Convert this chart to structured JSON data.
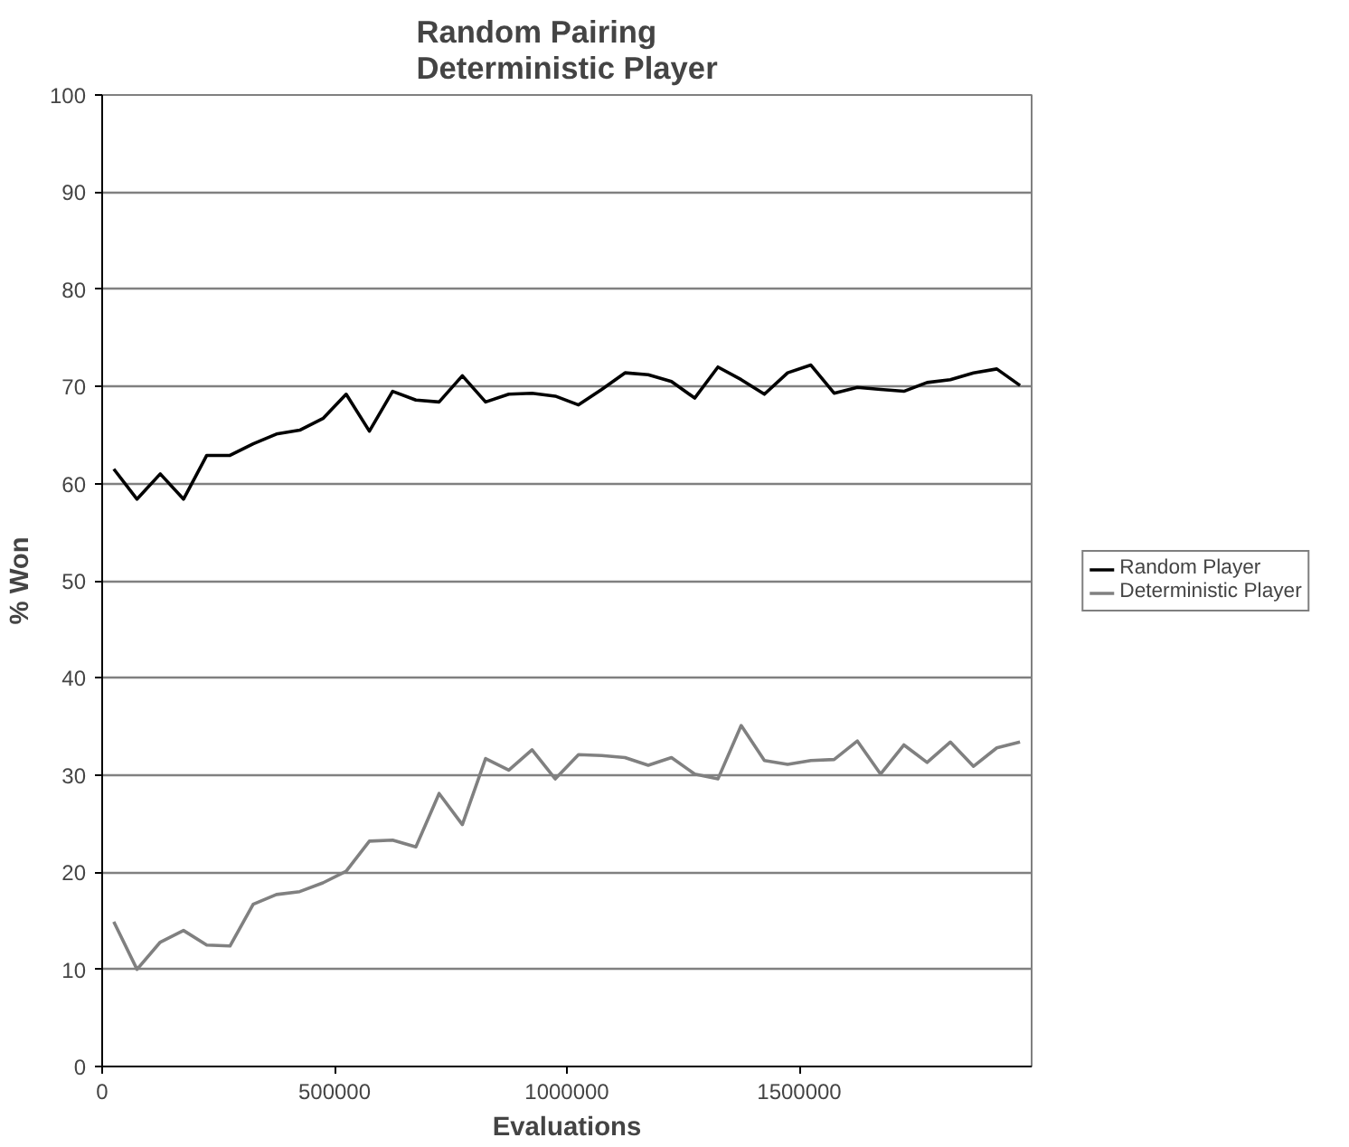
{
  "chart_data": {
    "type": "line",
    "title": "Random Pairing\nDeterministic Player",
    "xlabel": "Evaluations",
    "ylabel": "% Won",
    "x": [
      25000,
      75000,
      125000,
      175000,
      225000,
      275000,
      325000,
      375000,
      425000,
      475000,
      525000,
      575000,
      625000,
      675000,
      725000,
      775000,
      825000,
      875000,
      925000,
      975000,
      1025000,
      1075000,
      1125000,
      1175000,
      1225000,
      1275000,
      1325000,
      1375000,
      1425000,
      1475000,
      1525000,
      1575000,
      1625000,
      1675000,
      1725000,
      1775000,
      1825000,
      1875000,
      1925000,
      1975000
    ],
    "series": [
      {
        "name": "Random Player",
        "color": "#000000",
        "values": [
          61.5,
          58.4,
          61.0,
          58.4,
          62.9,
          62.9,
          64.1,
          65.1,
          65.5,
          66.7,
          69.2,
          65.4,
          69.5,
          68.6,
          68.4,
          71.1,
          68.4,
          69.2,
          69.3,
          69.0,
          68.1,
          69.7,
          71.4,
          71.2,
          70.5,
          68.8,
          72.0,
          70.7,
          69.2,
          71.4,
          72.2,
          69.3,
          69.9,
          69.7,
          69.5,
          70.4,
          70.7,
          71.4,
          71.8,
          70.1
        ]
      },
      {
        "name": "Deterministic Player",
        "color": "#808080",
        "values": [
          14.9,
          10.0,
          12.8,
          14.0,
          12.5,
          12.4,
          16.7,
          17.7,
          18.0,
          18.9,
          20.1,
          23.2,
          23.3,
          22.6,
          28.1,
          24.9,
          31.7,
          30.5,
          32.6,
          29.6,
          32.1,
          32.0,
          31.8,
          31.0,
          31.8,
          30.1,
          29.6,
          35.1,
          31.5,
          31.1,
          31.5,
          31.6,
          33.5,
          30.1,
          33.1,
          31.3,
          33.4,
          30.9,
          32.8,
          33.4
        ]
      }
    ],
    "xlim": [
      0,
      2000000
    ],
    "xticks": [
      0,
      500000,
      1000000,
      1500000
    ],
    "ylim": [
      0,
      100
    ],
    "yticks": [
      0,
      10,
      20,
      30,
      40,
      50,
      60,
      70,
      80,
      90,
      100
    ],
    "grid": "y",
    "legend": "right",
    "marker": "none",
    "line_style": "solid"
  }
}
